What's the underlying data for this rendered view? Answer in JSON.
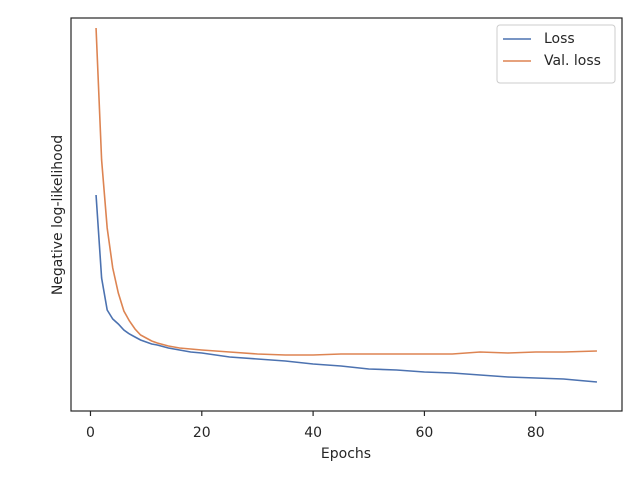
{
  "chart_data": {
    "type": "line",
    "xlabel": "Epochs",
    "ylabel": "Negative log-likelihood",
    "x": [
      1,
      2,
      3,
      4,
      5,
      6,
      7,
      8,
      9,
      10,
      11,
      12,
      14,
      16,
      18,
      20,
      25,
      30,
      35,
      40,
      45,
      50,
      55,
      60,
      65,
      70,
      75,
      80,
      85,
      91
    ],
    "series": [
      {
        "name": "Loss",
        "color": "#4c72b0",
        "values": [
          216,
          133,
          101,
          92,
          87,
          81,
          77,
          74,
          71,
          69,
          67,
          66,
          63,
          61,
          59,
          58,
          54,
          52,
          50,
          47,
          45,
          42,
          41,
          39,
          38,
          36,
          34,
          33,
          32,
          29
        ]
      },
      {
        "name": "Val. loss",
        "color": "#dd8452",
        "values": [
          383,
          251,
          183,
          143,
          118,
          100,
          90,
          82,
          76,
          73,
          70,
          68,
          65,
          63,
          62,
          61,
          59,
          57,
          56,
          56,
          57,
          57,
          57,
          57,
          57,
          59,
          58,
          59,
          59,
          60
        ]
      }
    ],
    "xlim": [
      -3.5,
      95.5
    ],
    "xticks": [
      0,
      20,
      40,
      60,
      80
    ],
    "ylim": [
      0,
      393
    ],
    "legend": "upper right"
  }
}
